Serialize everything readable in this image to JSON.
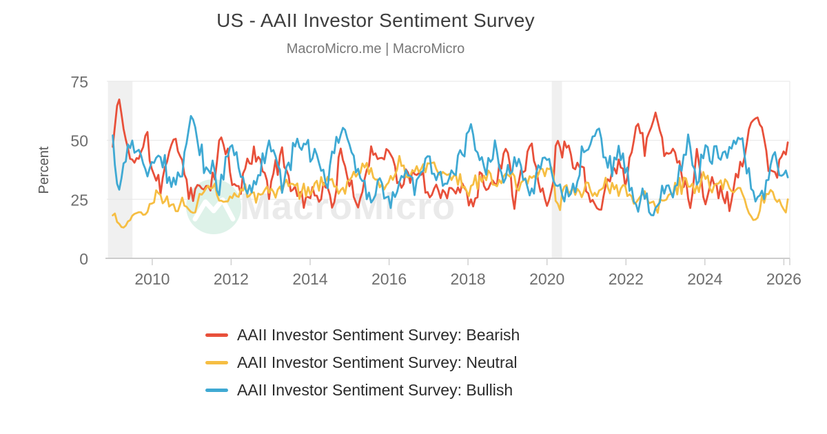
{
  "header": {
    "title": "US - AAII Investor Sentiment Survey",
    "subtitle": "MacroMicro.me | MacroMicro"
  },
  "watermark": {
    "text": "MacroMicro"
  },
  "legend": {
    "items": [
      {
        "label": "AAII Investor Sentiment Survey: Bearish",
        "color": "#E8503A"
      },
      {
        "label": "AAII Investor Sentiment Survey: Neutral",
        "color": "#F6BE43"
      },
      {
        "label": "AAII Investor Sentiment Survey: Bullish",
        "color": "#3FA9D3"
      }
    ]
  },
  "chart_data": {
    "type": "line",
    "title": "US - AAII Investor Sentiment Survey",
    "subtitle": "MacroMicro.me | MacroMicro",
    "xlabel": "",
    "ylabel": "Percent",
    "ylim": [
      0,
      75
    ],
    "xlim": [
      2008.85,
      2026.15
    ],
    "y_ticks": [
      0,
      25,
      50,
      75
    ],
    "x_ticks": [
      2010,
      2012,
      2014,
      2016,
      2018,
      2020,
      2022,
      2024,
      2026
    ],
    "grid": true,
    "legend_position": "bottom",
    "frequency": "weekly survey, values in percent; anchors below are estimates read from the plot",
    "recession_bands": [
      {
        "from": 2008.88,
        "to": 2009.5
      },
      {
        "from": 2020.12,
        "to": 2020.38
      }
    ],
    "series": [
      {
        "name": "AAII Investor Sentiment Survey: Bearish",
        "color": "#E8503A",
        "anchors": [
          [
            2009.0,
            47
          ],
          [
            2009.15,
            70
          ],
          [
            2009.3,
            51
          ],
          [
            2009.5,
            43
          ],
          [
            2009.7,
            40
          ],
          [
            2009.85,
            56
          ],
          [
            2010.0,
            36
          ],
          [
            2010.2,
            30
          ],
          [
            2010.5,
            51
          ],
          [
            2010.7,
            45
          ],
          [
            2010.9,
            30
          ],
          [
            2011.05,
            27
          ],
          [
            2011.3,
            30
          ],
          [
            2011.6,
            36
          ],
          [
            2011.75,
            50
          ],
          [
            2011.9,
            44
          ],
          [
            2012.05,
            30
          ],
          [
            2012.2,
            28
          ],
          [
            2012.4,
            42
          ],
          [
            2012.6,
            43
          ],
          [
            2012.8,
            39
          ],
          [
            2013.0,
            28
          ],
          [
            2013.3,
            48
          ],
          [
            2013.5,
            30
          ],
          [
            2013.7,
            28
          ],
          [
            2013.9,
            26
          ],
          [
            2014.1,
            27
          ],
          [
            2014.35,
            29
          ],
          [
            2014.6,
            24
          ],
          [
            2014.8,
            47
          ],
          [
            2015.0,
            28
          ],
          [
            2015.3,
            25
          ],
          [
            2015.55,
            49
          ],
          [
            2015.75,
            40
          ],
          [
            2016.05,
            48
          ],
          [
            2016.3,
            28
          ],
          [
            2016.5,
            37
          ],
          [
            2016.8,
            34
          ],
          [
            2017.0,
            27
          ],
          [
            2017.3,
            30
          ],
          [
            2017.6,
            26
          ],
          [
            2017.9,
            32
          ],
          [
            2018.1,
            22
          ],
          [
            2018.3,
            35
          ],
          [
            2018.6,
            28
          ],
          [
            2018.8,
            40
          ],
          [
            2019.0,
            50
          ],
          [
            2019.15,
            25
          ],
          [
            2019.4,
            40
          ],
          [
            2019.6,
            48
          ],
          [
            2019.8,
            30
          ],
          [
            2020.0,
            24
          ],
          [
            2020.15,
            30
          ],
          [
            2020.25,
            52
          ],
          [
            2020.4,
            44
          ],
          [
            2020.55,
            48
          ],
          [
            2020.7,
            42
          ],
          [
            2020.85,
            40
          ],
          [
            2021.0,
            30
          ],
          [
            2021.2,
            24
          ],
          [
            2021.4,
            26
          ],
          [
            2021.6,
            33
          ],
          [
            2021.8,
            41
          ],
          [
            2022.0,
            35
          ],
          [
            2022.15,
            44
          ],
          [
            2022.3,
            59
          ],
          [
            2022.45,
            46
          ],
          [
            2022.6,
            54
          ],
          [
            2022.75,
            61
          ],
          [
            2022.9,
            52
          ],
          [
            2023.05,
            42
          ],
          [
            2023.2,
            48
          ],
          [
            2023.45,
            36
          ],
          [
            2023.6,
            24
          ],
          [
            2023.8,
            43
          ],
          [
            2024.0,
            26
          ],
          [
            2024.2,
            33
          ],
          [
            2024.45,
            26
          ],
          [
            2024.65,
            24
          ],
          [
            2024.85,
            38
          ],
          [
            2025.0,
            45
          ],
          [
            2025.15,
            57
          ],
          [
            2025.3,
            61
          ],
          [
            2025.45,
            55
          ],
          [
            2025.6,
            38
          ],
          [
            2025.75,
            34
          ],
          [
            2025.9,
            42
          ],
          [
            2026.1,
            46
          ]
        ]
      },
      {
        "name": "AAII Investor Sentiment Survey: Neutral",
        "color": "#F6BE43",
        "anchors": [
          [
            2009.0,
            22
          ],
          [
            2009.15,
            14
          ],
          [
            2009.3,
            13
          ],
          [
            2009.5,
            18
          ],
          [
            2009.7,
            20
          ],
          [
            2009.85,
            17
          ],
          [
            2010.0,
            24
          ],
          [
            2010.2,
            26
          ],
          [
            2010.5,
            22
          ],
          [
            2010.7,
            24
          ],
          [
            2010.9,
            22
          ],
          [
            2011.05,
            18
          ],
          [
            2011.2,
            28
          ],
          [
            2011.4,
            30
          ],
          [
            2011.6,
            28
          ],
          [
            2011.8,
            22
          ],
          [
            2012.0,
            26
          ],
          [
            2012.25,
            30
          ],
          [
            2012.5,
            28
          ],
          [
            2012.75,
            27
          ],
          [
            2013.0,
            30
          ],
          [
            2013.25,
            28
          ],
          [
            2013.5,
            32
          ],
          [
            2013.75,
            28
          ],
          [
            2014.0,
            30
          ],
          [
            2014.25,
            32
          ],
          [
            2014.5,
            34
          ],
          [
            2014.75,
            28
          ],
          [
            2015.0,
            32
          ],
          [
            2015.25,
            40
          ],
          [
            2015.5,
            36
          ],
          [
            2015.75,
            32
          ],
          [
            2016.0,
            30
          ],
          [
            2016.25,
            42
          ],
          [
            2016.5,
            36
          ],
          [
            2016.75,
            38
          ],
          [
            2017.0,
            40
          ],
          [
            2017.25,
            38
          ],
          [
            2017.5,
            36
          ],
          [
            2017.75,
            34
          ],
          [
            2018.0,
            28
          ],
          [
            2018.25,
            32
          ],
          [
            2018.5,
            36
          ],
          [
            2018.75,
            30
          ],
          [
            2019.0,
            36
          ],
          [
            2019.25,
            32
          ],
          [
            2019.5,
            33
          ],
          [
            2019.75,
            36
          ],
          [
            2020.0,
            36
          ],
          [
            2020.15,
            34
          ],
          [
            2020.3,
            20
          ],
          [
            2020.45,
            30
          ],
          [
            2020.6,
            28
          ],
          [
            2020.75,
            26
          ],
          [
            2021.0,
            32
          ],
          [
            2021.25,
            26
          ],
          [
            2021.5,
            34
          ],
          [
            2021.75,
            28
          ],
          [
            2022.0,
            28
          ],
          [
            2022.25,
            24
          ],
          [
            2022.5,
            28
          ],
          [
            2022.75,
            22
          ],
          [
            2023.0,
            26
          ],
          [
            2023.25,
            30
          ],
          [
            2023.5,
            32
          ],
          [
            2023.75,
            28
          ],
          [
            2024.0,
            36
          ],
          [
            2024.25,
            30
          ],
          [
            2024.5,
            32
          ],
          [
            2024.75,
            30
          ],
          [
            2025.0,
            26
          ],
          [
            2025.15,
            18
          ],
          [
            2025.3,
            16
          ],
          [
            2025.45,
            24
          ],
          [
            2025.6,
            28
          ],
          [
            2025.75,
            26
          ],
          [
            2025.9,
            22
          ],
          [
            2026.1,
            22
          ]
        ]
      },
      {
        "name": "AAII Investor Sentiment Survey: Bullish",
        "color": "#3FA9D3",
        "anchors": [
          [
            2009.0,
            49
          ],
          [
            2009.15,
            27
          ],
          [
            2009.3,
            40
          ],
          [
            2009.5,
            48
          ],
          [
            2009.7,
            45
          ],
          [
            2009.85,
            34
          ],
          [
            2010.0,
            41
          ],
          [
            2010.2,
            44
          ],
          [
            2010.5,
            30
          ],
          [
            2010.7,
            35
          ],
          [
            2010.9,
            50
          ],
          [
            2011.0,
            63
          ],
          [
            2011.15,
            50
          ],
          [
            2011.3,
            42
          ],
          [
            2011.5,
            38
          ],
          [
            2011.7,
            30
          ],
          [
            2011.85,
            40
          ],
          [
            2012.0,
            48
          ],
          [
            2012.2,
            42
          ],
          [
            2012.4,
            30
          ],
          [
            2012.6,
            33
          ],
          [
            2012.8,
            40
          ],
          [
            2013.05,
            48
          ],
          [
            2013.3,
            30
          ],
          [
            2013.55,
            45
          ],
          [
            2013.75,
            48
          ],
          [
            2013.95,
            46
          ],
          [
            2014.15,
            42
          ],
          [
            2014.4,
            33
          ],
          [
            2014.6,
            44
          ],
          [
            2014.85,
            56
          ],
          [
            2015.05,
            44
          ],
          [
            2015.3,
            35
          ],
          [
            2015.55,
            25
          ],
          [
            2015.75,
            33
          ],
          [
            2016.0,
            25
          ],
          [
            2016.2,
            30
          ],
          [
            2016.45,
            38
          ],
          [
            2016.7,
            30
          ],
          [
            2016.95,
            45
          ],
          [
            2017.2,
            34
          ],
          [
            2017.45,
            32
          ],
          [
            2017.7,
            38
          ],
          [
            2017.95,
            48
          ],
          [
            2018.05,
            58
          ],
          [
            2018.25,
            40
          ],
          [
            2018.5,
            38
          ],
          [
            2018.7,
            46
          ],
          [
            2018.9,
            30
          ],
          [
            2019.05,
            38
          ],
          [
            2019.3,
            42
          ],
          [
            2019.55,
            26
          ],
          [
            2019.75,
            36
          ],
          [
            2019.95,
            42
          ],
          [
            2020.1,
            38
          ],
          [
            2020.25,
            32
          ],
          [
            2020.4,
            26
          ],
          [
            2020.55,
            24
          ],
          [
            2020.7,
            32
          ],
          [
            2020.9,
            46
          ],
          [
            2021.05,
            44
          ],
          [
            2021.3,
            56
          ],
          [
            2021.45,
            42
          ],
          [
            2021.65,
            38
          ],
          [
            2021.85,
            44
          ],
          [
            2022.0,
            40
          ],
          [
            2022.15,
            26
          ],
          [
            2022.3,
            18
          ],
          [
            2022.45,
            30
          ],
          [
            2022.6,
            18
          ],
          [
            2022.75,
            20
          ],
          [
            2022.9,
            26
          ],
          [
            2023.05,
            32
          ],
          [
            2023.2,
            24
          ],
          [
            2023.45,
            42
          ],
          [
            2023.6,
            50
          ],
          [
            2023.8,
            32
          ],
          [
            2023.95,
            46
          ],
          [
            2024.15,
            42
          ],
          [
            2024.35,
            48
          ],
          [
            2024.55,
            42
          ],
          [
            2024.75,
            48
          ],
          [
            2024.95,
            50
          ],
          [
            2025.1,
            38
          ],
          [
            2025.25,
            24
          ],
          [
            2025.4,
            22
          ],
          [
            2025.55,
            30
          ],
          [
            2025.7,
            42
          ],
          [
            2025.85,
            38
          ],
          [
            2026.1,
            37
          ]
        ]
      }
    ]
  }
}
